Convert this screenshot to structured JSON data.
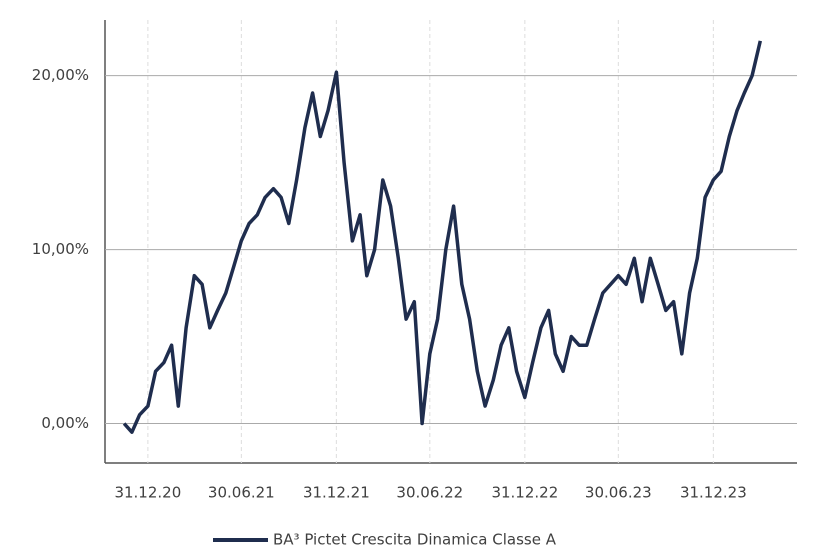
{
  "chart_data": {
    "type": "line",
    "x": [
      "15.11.20",
      "30.11.20",
      "15.12.20",
      "31.12.20",
      "15.01.21",
      "31.01.21",
      "15.02.21",
      "28.02.21",
      "15.03.21",
      "31.03.21",
      "15.04.21",
      "30.04.21",
      "15.05.21",
      "31.05.21",
      "15.06.21",
      "30.06.21",
      "15.07.21",
      "31.07.21",
      "15.08.21",
      "31.08.21",
      "15.09.21",
      "30.09.21",
      "15.10.21",
      "31.10.21",
      "15.11.21",
      "30.11.21",
      "15.12.21",
      "31.12.21",
      "15.01.22",
      "31.01.22",
      "15.02.22",
      "28.02.22",
      "15.03.22",
      "31.03.22",
      "15.04.22",
      "30.04.22",
      "15.05.22",
      "31.05.22",
      "15.06.22",
      "30.06.22",
      "15.07.22",
      "31.07.22",
      "15.08.22",
      "31.08.22",
      "15.09.22",
      "30.09.22",
      "15.10.22",
      "31.10.22",
      "15.11.22",
      "30.11.22",
      "15.12.22",
      "31.12.22",
      "15.01.23",
      "31.01.23",
      "15.02.23",
      "28.02.23",
      "15.03.23",
      "31.03.23",
      "15.04.23",
      "30.04.23",
      "15.05.23",
      "31.05.23",
      "15.06.23",
      "30.06.23",
      "15.07.23",
      "31.07.23",
      "15.08.23",
      "31.08.23",
      "15.09.23",
      "30.09.23",
      "15.10.23",
      "31.10.23",
      "15.11.23",
      "30.11.23",
      "15.12.23",
      "31.12.23",
      "15.01.24",
      "31.01.24",
      "15.02.24",
      "29.02.24",
      "15.03.24",
      "31.03.24"
    ],
    "series": [
      {
        "name": "BA³ Pictet Crescita Dinamica Classe A",
        "color": "#1f2d4e",
        "values": [
          0,
          -0.5,
          0.5,
          1,
          3,
          3.5,
          4.5,
          1,
          5.5,
          8.5,
          8,
          5.5,
          6.5,
          7.5,
          9,
          10.5,
          11.5,
          12,
          13,
          13.5,
          13,
          11.5,
          14,
          17,
          19,
          16.5,
          18,
          20.2,
          15,
          10.5,
          12,
          8.5,
          10,
          14,
          12.5,
          9.5,
          6,
          7,
          0,
          4,
          6,
          10,
          12.5,
          8,
          6,
          3,
          1,
          2.5,
          4.5,
          5.5,
          3,
          1.5,
          3.5,
          5.5,
          6.5,
          4,
          3,
          5,
          4.5,
          4.5,
          6,
          7.5,
          8,
          8.5,
          8,
          9.5,
          7,
          9.5,
          8,
          6.5,
          7,
          4,
          7.5,
          9.5,
          13,
          14,
          14.5,
          16.5,
          18,
          19,
          20,
          22
        ]
      }
    ],
    "xlim": [
      "09.10.20",
      "10.06.24"
    ],
    "xticks": [
      "31.12.20",
      "30.06.21",
      "31.12.21",
      "30.06.22",
      "31.12.22",
      "30.06.23",
      "31.12.23"
    ],
    "ylim": [
      -2.1,
      23.2
    ],
    "yticks": [
      {
        "value": 0,
        "label": "0,00%"
      },
      {
        "value": 10,
        "label": "10,00%"
      },
      {
        "value": 20,
        "label": "20,00%"
      }
    ],
    "grid": true
  }
}
